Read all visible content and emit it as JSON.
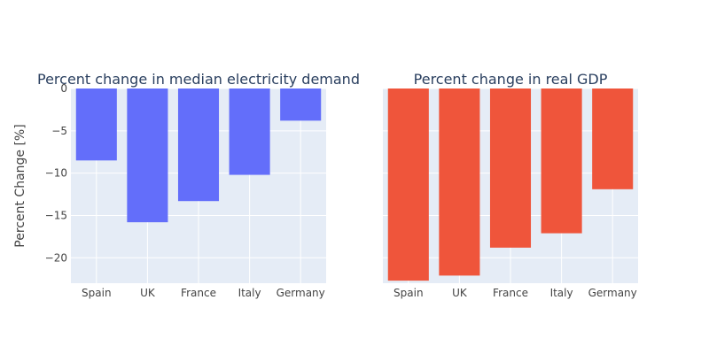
{
  "ylabel": "Percent Change [%]",
  "colors": {
    "plot_bg": "#e5ecf6",
    "grid": "#ffffff",
    "text": "#444444",
    "title": "#2a3f5f"
  },
  "chart_data": [
    {
      "type": "bar",
      "title": "Percent change in median electricity demand",
      "categories": [
        "Spain",
        "UK",
        "France",
        "Italy",
        "Germany"
      ],
      "values": [
        -8.5,
        -15.8,
        -13.3,
        -10.2,
        -3.8
      ],
      "color": "#636efa",
      "ylim": [
        -23,
        0
      ],
      "yticks": [
        0,
        -5,
        -10,
        -15,
        -20
      ],
      "ylabel": "Percent Change [%]",
      "xlabel": "",
      "grid": true
    },
    {
      "type": "bar",
      "title": "Percent change in real GDP",
      "categories": [
        "Spain",
        "UK",
        "France",
        "Italy",
        "Germany"
      ],
      "values": [
        -22.7,
        -22.1,
        -18.8,
        -17.1,
        -11.9
      ],
      "color": "#ef553b",
      "ylim": [
        -23,
        0
      ],
      "yticks": [
        0,
        -5,
        -10,
        -15,
        -20
      ],
      "ylabel": "",
      "xlabel": "",
      "grid": true
    }
  ]
}
